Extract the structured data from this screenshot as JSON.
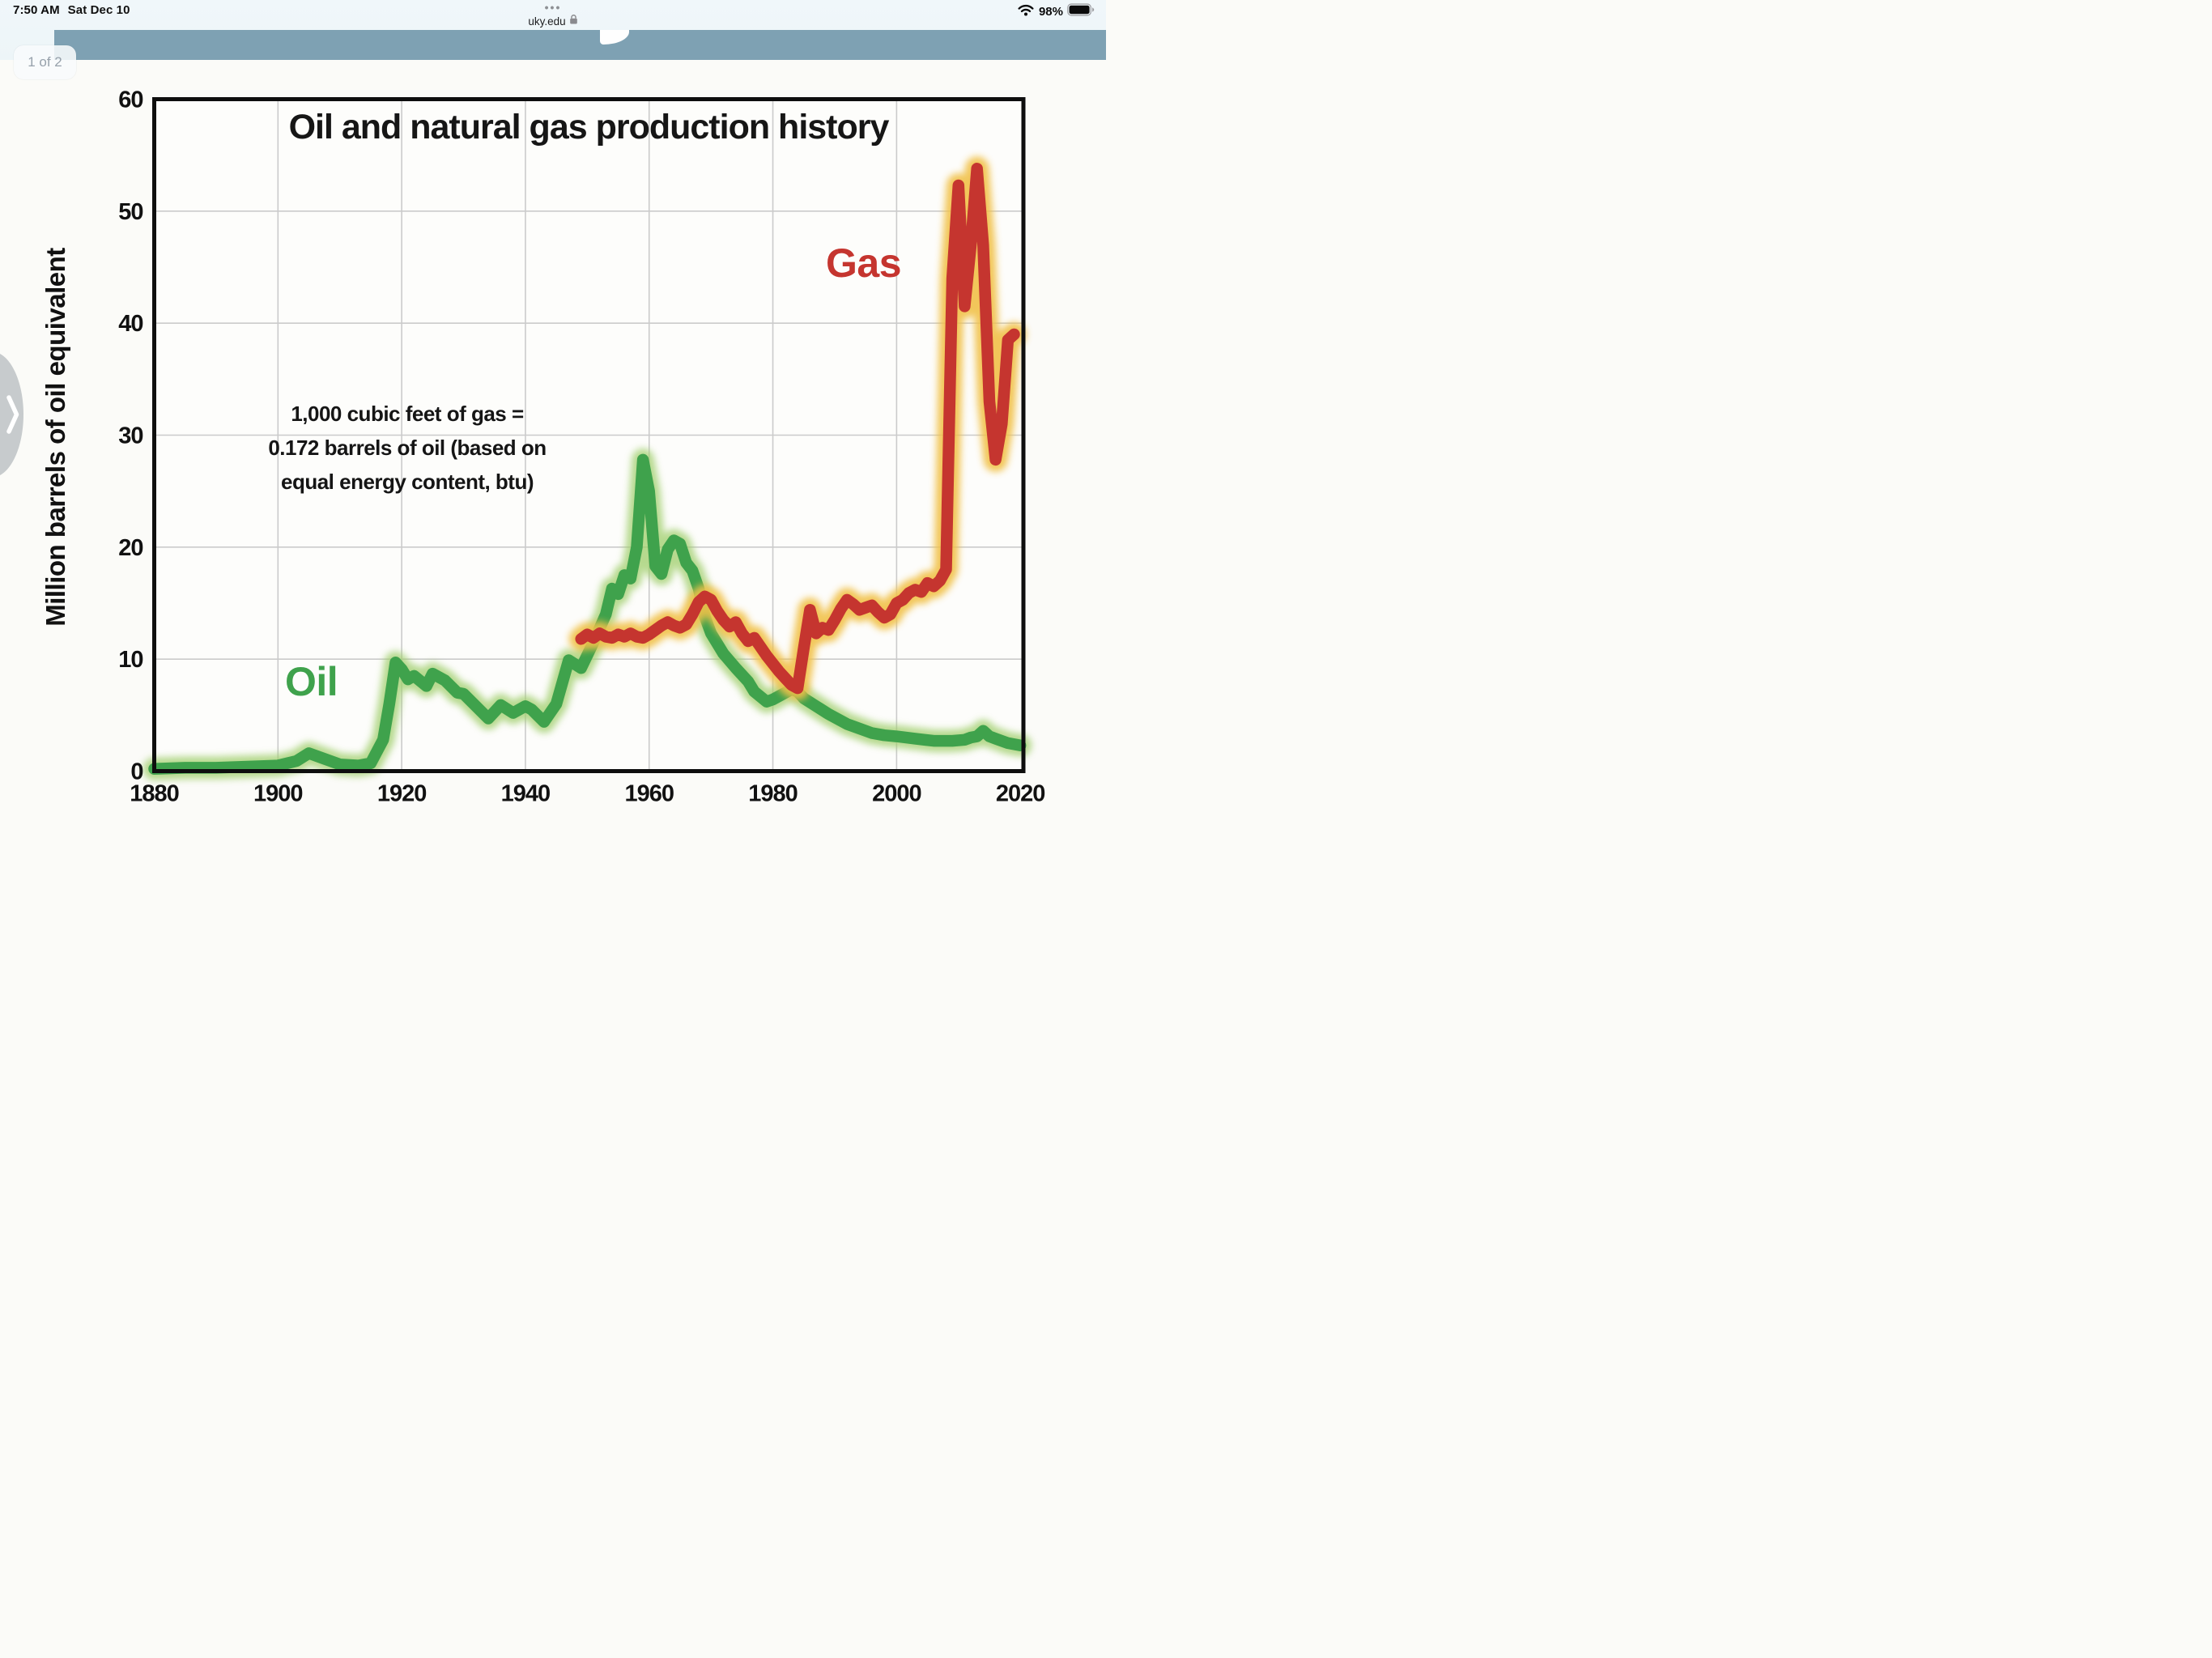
{
  "status_bar": {
    "time": "7:50 AM",
    "date": "Sat Dec 10",
    "wifi_icon": "wifi-icon",
    "battery_percent": "98%",
    "battery_icon": "battery-icon"
  },
  "browser_bar": {
    "grabber": "•••",
    "url": "uky.edu",
    "lock_icon": "lock-icon"
  },
  "page_indicator": {
    "label": "1 of 2"
  },
  "page_nav": {
    "next_icon": "chevron-right-icon"
  },
  "colors": {
    "header_band": "#7EA1B3",
    "grid": "#CBCBCB",
    "axis": "#0E0E0E",
    "plot_background": "#FDFDFB",
    "oil": "#3FA24C",
    "oil_glow": "#9FCE6B",
    "gas": "#C5352F",
    "gas_glow": "#F1C148"
  },
  "chart_data": {
    "type": "line",
    "title": "Oil and natural gas production history",
    "ylabel": "Million barrels of oil equivalent",
    "xlabel": "",
    "annotation": "1,000 cubic feet of gas =\n0.172 barrels of oil (based on\nequal energy content, btu)",
    "xlim": [
      1880,
      2020.5
    ],
    "ylim": [
      0,
      60
    ],
    "xticks": [
      1880,
      1900,
      1920,
      1940,
      1960,
      1980,
      2000,
      2020
    ],
    "yticks": [
      0,
      10,
      20,
      30,
      40,
      50,
      60
    ],
    "grid_x": [
      1900,
      1920,
      1940,
      1960,
      1980,
      2000
    ],
    "grid_y": [
      10,
      20,
      30,
      40,
      50
    ],
    "grid": "on",
    "legend_position": "inline-labels",
    "series": [
      {
        "name": "Oil",
        "color": "#3FA24C",
        "glow": "#9FCE6B",
        "points": [
          [
            1880,
            0.2
          ],
          [
            1885,
            0.3
          ],
          [
            1890,
            0.3
          ],
          [
            1895,
            0.4
          ],
          [
            1900,
            0.5
          ],
          [
            1903,
            0.9
          ],
          [
            1905,
            1.6
          ],
          [
            1907,
            1.2
          ],
          [
            1910,
            0.6
          ],
          [
            1913,
            0.5
          ],
          [
            1915,
            0.7
          ],
          [
            1917,
            2.8
          ],
          [
            1918,
            6.0
          ],
          [
            1919,
            9.7
          ],
          [
            1920,
            9.1
          ],
          [
            1921,
            8.2
          ],
          [
            1922,
            8.5
          ],
          [
            1924,
            7.6
          ],
          [
            1925,
            8.7
          ],
          [
            1927,
            8.1
          ],
          [
            1929,
            7.0
          ],
          [
            1930,
            6.9
          ],
          [
            1932,
            5.8
          ],
          [
            1934,
            4.7
          ],
          [
            1936,
            5.9
          ],
          [
            1938,
            5.2
          ],
          [
            1940,
            5.8
          ],
          [
            1941,
            5.5
          ],
          [
            1943,
            4.4
          ],
          [
            1945,
            6.0
          ],
          [
            1947,
            9.9
          ],
          [
            1949,
            9.2
          ],
          [
            1951,
            11.5
          ],
          [
            1953,
            14.0
          ],
          [
            1954,
            16.3
          ],
          [
            1955,
            15.8
          ],
          [
            1956,
            17.5
          ],
          [
            1957,
            17.2
          ],
          [
            1958,
            20.0
          ],
          [
            1959,
            27.8
          ],
          [
            1960,
            25.0
          ],
          [
            1961,
            18.3
          ],
          [
            1962,
            17.6
          ],
          [
            1963,
            19.8
          ],
          [
            1964,
            20.6
          ],
          [
            1965,
            20.3
          ],
          [
            1966,
            18.6
          ],
          [
            1967,
            17.9
          ],
          [
            1968,
            16.3
          ],
          [
            1969,
            13.8
          ],
          [
            1970,
            12.3
          ],
          [
            1972,
            10.5
          ],
          [
            1974,
            9.2
          ],
          [
            1976,
            8.0
          ],
          [
            1977,
            7.1
          ],
          [
            1979,
            6.2
          ],
          [
            1980,
            6.4
          ],
          [
            1982,
            7.0
          ],
          [
            1983,
            7.3
          ],
          [
            1984,
            7.1
          ],
          [
            1985,
            6.5
          ],
          [
            1987,
            5.8
          ],
          [
            1989,
            5.1
          ],
          [
            1992,
            4.2
          ],
          [
            1994,
            3.8
          ],
          [
            1996,
            3.4
          ],
          [
            1998,
            3.2
          ],
          [
            2000,
            3.1
          ],
          [
            2003,
            2.9
          ],
          [
            2006,
            2.7
          ],
          [
            2009,
            2.7
          ],
          [
            2011,
            2.8
          ],
          [
            2012,
            3.0
          ],
          [
            2013,
            3.1
          ],
          [
            2014,
            3.6
          ],
          [
            2015,
            3.1
          ],
          [
            2016,
            2.9
          ],
          [
            2018,
            2.5
          ],
          [
            2020,
            2.3
          ]
        ]
      },
      {
        "name": "Gas",
        "color": "#C5352F",
        "glow": "#F1C148",
        "points": [
          [
            1949,
            11.8
          ],
          [
            1950,
            12.2
          ],
          [
            1951,
            11.9
          ],
          [
            1952,
            12.3
          ],
          [
            1953,
            12.0
          ],
          [
            1954,
            11.9
          ],
          [
            1955,
            12.2
          ],
          [
            1956,
            12.0
          ],
          [
            1957,
            12.3
          ],
          [
            1958,
            12.0
          ],
          [
            1959,
            11.9
          ],
          [
            1960,
            12.2
          ],
          [
            1961,
            12.6
          ],
          [
            1962,
            13.0
          ],
          [
            1963,
            13.3
          ],
          [
            1964,
            13.0
          ],
          [
            1965,
            12.8
          ],
          [
            1966,
            13.1
          ],
          [
            1967,
            14.0
          ],
          [
            1968,
            15.1
          ],
          [
            1969,
            15.6
          ],
          [
            1970,
            15.3
          ],
          [
            1971,
            14.3
          ],
          [
            1972,
            13.5
          ],
          [
            1973,
            12.9
          ],
          [
            1974,
            13.3
          ],
          [
            1975,
            12.3
          ],
          [
            1976,
            11.6
          ],
          [
            1977,
            11.9
          ],
          [
            1978,
            11.1
          ],
          [
            1979,
            10.3
          ],
          [
            1980,
            9.6
          ],
          [
            1981,
            8.9
          ],
          [
            1982,
            8.3
          ],
          [
            1983,
            7.7
          ],
          [
            1984,
            7.4
          ],
          [
            1985,
            11.0
          ],
          [
            1986,
            14.4
          ],
          [
            1987,
            12.3
          ],
          [
            1988,
            12.8
          ],
          [
            1989,
            12.6
          ],
          [
            1990,
            13.5
          ],
          [
            1991,
            14.5
          ],
          [
            1992,
            15.3
          ],
          [
            1993,
            14.9
          ],
          [
            1994,
            14.4
          ],
          [
            1995,
            14.6
          ],
          [
            1996,
            14.8
          ],
          [
            1997,
            14.2
          ],
          [
            1998,
            13.7
          ],
          [
            1999,
            14.0
          ],
          [
            2000,
            15.0
          ],
          [
            2001,
            15.3
          ],
          [
            2002,
            15.9
          ],
          [
            2003,
            16.2
          ],
          [
            2004,
            16.0
          ],
          [
            2005,
            16.8
          ],
          [
            2006,
            16.5
          ],
          [
            2007,
            17.0
          ],
          [
            2008,
            18.0
          ],
          [
            2009,
            44.0
          ],
          [
            2010,
            52.3
          ],
          [
            2011,
            41.5
          ],
          [
            2012,
            47.0
          ],
          [
            2013,
            53.8
          ],
          [
            2014,
            47.0
          ],
          [
            2015,
            33.0
          ],
          [
            2016,
            27.8
          ],
          [
            2017,
            31.0
          ],
          [
            2018,
            38.5
          ],
          [
            2019,
            39.0
          ]
        ]
      }
    ]
  }
}
